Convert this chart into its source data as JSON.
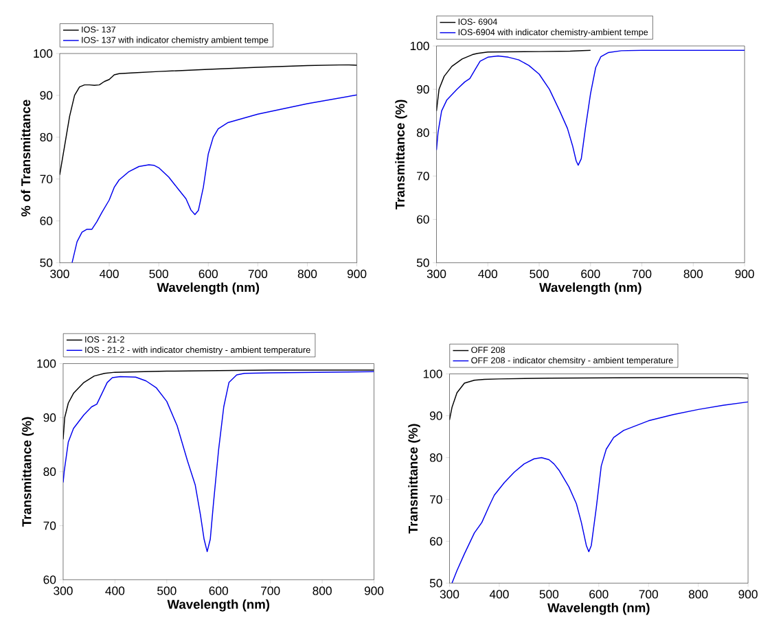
{
  "chart_data": [
    {
      "type": "line",
      "xlabel": "Wavelength (nm)",
      "ylabel": "% of Transmittance",
      "xlim": [
        300,
        900
      ],
      "ylim": [
        50,
        100
      ],
      "xticks": [
        300,
        400,
        500,
        600,
        700,
        800,
        900
      ],
      "yticks": [
        50,
        60,
        70,
        80,
        90,
        100
      ],
      "grid": false,
      "legend": "top",
      "marker": "none",
      "line_style": "solid",
      "series": [
        {
          "name": "IOS- 137",
          "color": "#000000",
          "x": [
            300,
            310,
            320,
            330,
            340,
            350,
            360,
            370,
            380,
            390,
            400,
            410,
            420,
            450,
            500,
            600,
            700,
            800,
            880,
            900
          ],
          "values": [
            71,
            78,
            85,
            90,
            92,
            92.5,
            92.5,
            92.4,
            92.5,
            93.3,
            93.8,
            94.9,
            95.2,
            95.4,
            95.7,
            96.2,
            96.7,
            97.1,
            97.3,
            97.2
          ]
        },
        {
          "name": "IOS- 137 with indicator chemistry ambient tempe",
          "color": "#0000ee",
          "x": [
            325,
            335,
            345,
            355,
            365,
            375,
            385,
            400,
            410,
            420,
            440,
            460,
            480,
            490,
            500,
            520,
            540,
            555,
            565,
            573,
            580,
            590,
            600,
            610,
            620,
            640,
            700,
            800,
            900
          ],
          "values": [
            50,
            55,
            57.3,
            58,
            58,
            59.8,
            62,
            65,
            68,
            69.8,
            71.8,
            73,
            73.4,
            73.3,
            72.7,
            70.5,
            67.5,
            65.3,
            62.6,
            61.5,
            62.5,
            68,
            76,
            80,
            82,
            83.5,
            85.5,
            88,
            90.1
          ]
        }
      ]
    },
    {
      "type": "line",
      "xlabel": "Wavelength (nm)",
      "ylabel": "Transmittance (%)",
      "xlim": [
        300,
        900
      ],
      "ylim": [
        50,
        100
      ],
      "xticks": [
        300,
        400,
        500,
        600,
        700,
        800,
        900
      ],
      "yticks": [
        50,
        60,
        70,
        80,
        90,
        100
      ],
      "grid": false,
      "legend": "top",
      "marker": "none",
      "line_style": "solid",
      "series": [
        {
          "name": "IOS- 6904",
          "color": "#000000",
          "x": [
            300,
            305,
            315,
            330,
            350,
            370,
            380,
            400,
            500,
            560,
            600
          ],
          "values": [
            85,
            90,
            93,
            95.3,
            97,
            98,
            98.3,
            98.6,
            98.7,
            98.8,
            99
          ]
        },
        {
          "name": "IOS-6904 with indicator chemistry-ambient tempe",
          "color": "#0000ee",
          "x": [
            300,
            303,
            310,
            320,
            340,
            355,
            365,
            375,
            385,
            400,
            420,
            440,
            460,
            480,
            500,
            520,
            540,
            555,
            565,
            572,
            576,
            582,
            590,
            600,
            610,
            620,
            635,
            660,
            700,
            900
          ],
          "values": [
            76,
            80,
            85,
            87.5,
            90,
            91.7,
            92.5,
            94.5,
            96.5,
            97.4,
            97.7,
            97.4,
            96.8,
            95.5,
            93.5,
            90,
            85,
            81,
            77,
            73.5,
            72.5,
            74,
            81,
            89,
            95,
            97.5,
            98.5,
            98.9,
            99,
            99
          ]
        }
      ]
    },
    {
      "type": "line",
      "xlabel": "Wavelength (nm)",
      "ylabel": "Transmittance (%)",
      "xlim": [
        300,
        900
      ],
      "ylim": [
        60,
        100
      ],
      "xticks": [
        300,
        400,
        500,
        600,
        700,
        800,
        900
      ],
      "yticks": [
        60,
        70,
        80,
        90,
        100
      ],
      "grid": false,
      "legend": "top",
      "marker": "none",
      "line_style": "solid",
      "series": [
        {
          "name": "IOS - 21-2",
          "color": "#000000",
          "x": [
            300,
            303,
            310,
            320,
            340,
            360,
            380,
            400,
            500,
            600,
            700,
            900
          ],
          "values": [
            86,
            90,
            92.7,
            94.5,
            96.5,
            97.7,
            98.2,
            98.4,
            98.6,
            98.7,
            98.8,
            98.8
          ]
        },
        {
          "name": "IOS - 21-2 - with indicator chemistry - ambient temperature",
          "color": "#0000ee",
          "x": [
            300,
            302,
            310,
            320,
            340,
            355,
            365,
            375,
            385,
            395,
            410,
            440,
            460,
            480,
            500,
            520,
            540,
            555,
            565,
            572,
            578,
            584,
            590,
            600,
            610,
            620,
            635,
            650,
            700,
            900
          ],
          "values": [
            78,
            80,
            85.5,
            88,
            90.5,
            92,
            92.5,
            94.5,
            96.5,
            97.4,
            97.6,
            97.5,
            96.8,
            95.5,
            93,
            88.5,
            82,
            77.5,
            72,
            67.5,
            65.2,
            67.5,
            74,
            84,
            92,
            96.5,
            97.9,
            98.2,
            98.3,
            98.5
          ]
        }
      ]
    },
    {
      "type": "line",
      "xlabel": "Wavelength (nm)",
      "ylabel": "Transmittance (%)",
      "xlim": [
        300,
        900
      ],
      "ylim": [
        50,
        100
      ],
      "xticks": [
        300,
        400,
        500,
        600,
        700,
        800,
        900
      ],
      "yticks": [
        50,
        60,
        70,
        80,
        90,
        100
      ],
      "grid": false,
      "legend": "top",
      "marker": "none",
      "line_style": "solid",
      "series": [
        {
          "name": "OFF 208",
          "color": "#000000",
          "x": [
            300,
            305,
            315,
            330,
            350,
            370,
            400,
            500,
            700,
            880,
            900
          ],
          "values": [
            89,
            92,
            95.5,
            97.8,
            98.5,
            98.7,
            98.8,
            99,
            99.1,
            99.1,
            99
          ]
        },
        {
          "name": "OFF 208 - indicator chemsitry - ambient temperature",
          "color": "#0000ee",
          "x": [
            305,
            315,
            330,
            350,
            365,
            380,
            390,
            410,
            430,
            450,
            470,
            485,
            500,
            510,
            520,
            540,
            555,
            565,
            575,
            580,
            585,
            595,
            605,
            615,
            630,
            650,
            700,
            750,
            800,
            850,
            900
          ],
          "values": [
            50,
            53,
            57,
            62,
            64.5,
            68.5,
            71,
            74,
            76.5,
            78.5,
            79.7,
            80,
            79.5,
            78.5,
            77,
            73,
            69,
            64.5,
            59,
            57.5,
            59,
            68,
            78,
            82,
            84.8,
            86.5,
            88.8,
            90.3,
            91.5,
            92.5,
            93.3
          ]
        }
      ]
    }
  ]
}
